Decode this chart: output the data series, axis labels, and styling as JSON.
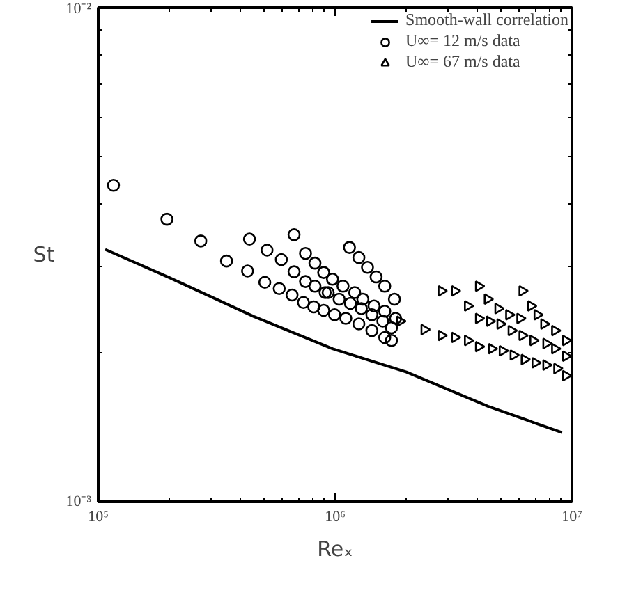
{
  "chart_data": {
    "type": "scatter",
    "xlabel": "Reₓ",
    "ylabel": "St",
    "log": "xy",
    "xlim": [
      100000,
      10000000
    ],
    "ylim": [
      0.001,
      0.01
    ],
    "xticks": [
      {
        "value": 100000,
        "label": "10⁵"
      },
      {
        "value": 1000000,
        "label": "10⁶"
      },
      {
        "value": 10000000,
        "label": "10⁷"
      }
    ],
    "yticks": [
      {
        "value": 0.001,
        "label": "10⁻³"
      },
      {
        "value": 0.01,
        "label": "10⁻²"
      }
    ],
    "grid": false,
    "legend": "top right",
    "series": [
      {
        "name": "Smooth-wall correlation",
        "type": "line",
        "line_style": "solid",
        "marker": "none",
        "color": "#000000",
        "x": [
          107000,
          200000,
          454000,
          975000,
          2000000,
          4420000,
          9080000
        ],
        "values": [
          0.00324,
          0.00284,
          0.00237,
          0.00204,
          0.00183,
          0.00156,
          0.00138
        ]
      },
      {
        "name": "U∞= 12 m/s data",
        "marker": "circle",
        "color": "#000000",
        "x": [
          116000,
          195000,
          271000,
          348000,
          435000,
          427000,
          516000,
          505000,
          581000,
          593000,
          671000,
          658000,
          671000,
          750000,
          750000,
          735000,
          822000,
          822000,
          813000,
          895000,
          895000,
          908000,
          1150000,
          1260000,
          1370000,
          1490000,
          1620000,
          1780000,
          975000,
          1080000,
          1210000,
          1310000,
          1460000,
          1620000,
          1800000,
          935000,
          1040000,
          1160000,
          1290000,
          1430000,
          1590000,
          1730000,
          995000,
          1110000,
          1260000,
          1430000,
          1620000,
          1730000
        ],
        "values": [
          0.00437,
          0.00373,
          0.00337,
          0.00307,
          0.0034,
          0.00293,
          0.00323,
          0.00278,
          0.0027,
          0.00309,
          0.00347,
          0.00262,
          0.00292,
          0.00318,
          0.00279,
          0.00253,
          0.00304,
          0.00273,
          0.00248,
          0.00291,
          0.00244,
          0.00265,
          0.00327,
          0.00312,
          0.00298,
          0.00285,
          0.00273,
          0.00257,
          0.00282,
          0.00273,
          0.00265,
          0.00257,
          0.00249,
          0.00243,
          0.00235,
          0.00265,
          0.00257,
          0.00252,
          0.00246,
          0.00239,
          0.00232,
          0.00225,
          0.00239,
          0.00235,
          0.00229,
          0.00222,
          0.00215,
          0.00212
        ]
      },
      {
        "name": "U∞= 67 m/s data",
        "marker": "triangle",
        "color": "#000000",
        "x": [
          1880000,
          2380000,
          2810000,
          2810000,
          3200000,
          3200000,
          3630000,
          3630000,
          4040000,
          4040000,
          4040000,
          4400000,
          4490000,
          4580000,
          4880000,
          4980000,
          5090000,
          5420000,
          5550000,
          5660000,
          6040000,
          6170000,
          6300000,
          6170000,
          6710000,
          7140000,
          6860000,
          7000000,
          7620000,
          7780000,
          7780000,
          8470000,
          8470000,
          8650000,
          9420000,
          9420000,
          9420000
        ],
        "values": [
          0.00232,
          0.00223,
          0.00267,
          0.00217,
          0.00267,
          0.00215,
          0.00249,
          0.00212,
          0.00273,
          0.00235,
          0.00206,
          0.00257,
          0.00232,
          0.00204,
          0.00246,
          0.00229,
          0.00202,
          0.00239,
          0.00222,
          0.00198,
          0.00235,
          0.00217,
          0.00194,
          0.00267,
          0.00249,
          0.00239,
          0.00212,
          0.00191,
          0.00229,
          0.00209,
          0.00189,
          0.00222,
          0.00204,
          0.00186,
          0.00212,
          0.00197,
          0.0018
        ]
      }
    ]
  }
}
